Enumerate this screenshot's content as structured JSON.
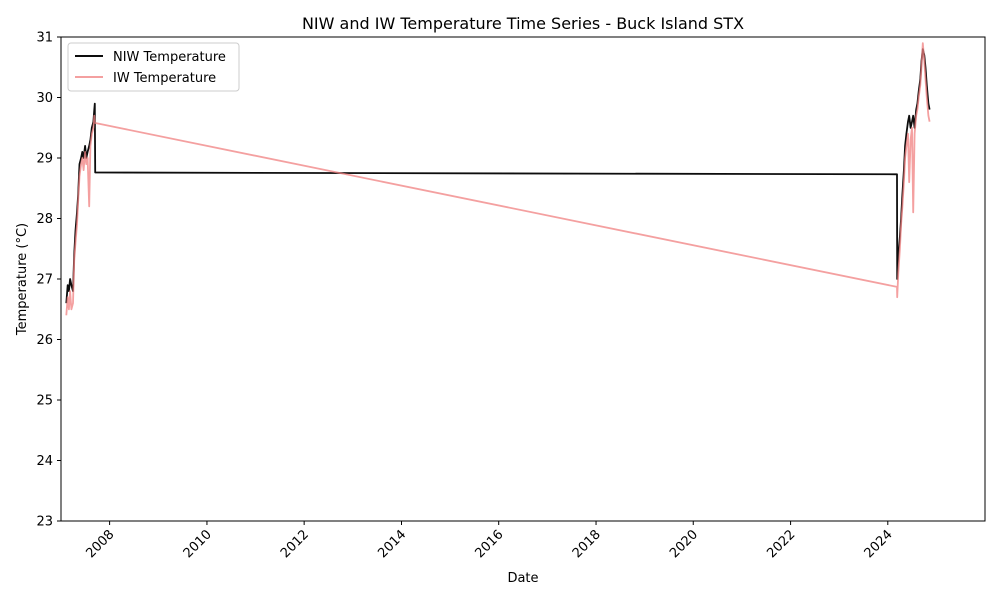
{
  "chart_data": {
    "type": "line",
    "title": "NIW and IW Temperature Time Series - Buck Island STX",
    "xlabel": "Date",
    "ylabel": "Temperature (°C)",
    "x_type": "date",
    "xlim": [
      "2007-01-01",
      "2025-12-31"
    ],
    "ylim": [
      23,
      31
    ],
    "xticks": [
      "2008-01-01",
      "2010-01-01",
      "2012-01-01",
      "2014-01-01",
      "2016-01-01",
      "2018-01-01",
      "2020-01-01",
      "2022-01-01",
      "2024-01-01"
    ],
    "xtick_labels": [
      "2008",
      "2010",
      "2012",
      "2014",
      "2016",
      "2018",
      "2020",
      "2022",
      "2024"
    ],
    "yticks": [
      23,
      24,
      25,
      26,
      27,
      28,
      29,
      30,
      31
    ],
    "ytick_labels": [
      "23",
      "24",
      "25",
      "26",
      "27",
      "28",
      "29",
      "30",
      "31"
    ],
    "grid": false,
    "legend_position": "top-left",
    "series": [
      {
        "name": "NIW Temperature",
        "color": "#000000",
        "opacity": 0.95,
        "x": [
          "2007-02-10",
          "2007-02-20",
          "2007-03-01",
          "2007-03-10",
          "2007-03-20",
          "2007-04-01",
          "2007-04-10",
          "2007-04-20",
          "2007-05-01",
          "2007-05-10",
          "2007-05-20",
          "2007-06-01",
          "2007-06-10",
          "2007-06-20",
          "2007-07-01",
          "2007-07-10",
          "2007-07-20",
          "2007-08-01",
          "2007-08-10",
          "2007-08-20",
          "2007-09-01",
          "2007-09-08",
          "2007-09-12",
          "2007-09-15",
          "2024-03-10",
          "2024-03-12",
          "2024-03-20",
          "2024-04-01",
          "2024-04-10",
          "2024-04-20",
          "2024-05-01",
          "2024-05-10",
          "2024-05-20",
          "2024-06-01",
          "2024-06-10",
          "2024-06-20",
          "2024-07-01",
          "2024-07-10",
          "2024-07-20",
          "2024-08-01",
          "2024-08-10",
          "2024-08-20",
          "2024-09-01",
          "2024-09-10",
          "2024-09-20",
          "2024-10-01",
          "2024-10-10",
          "2024-10-20",
          "2024-11-01",
          "2024-11-10"
        ],
        "y": [
          26.6,
          26.9,
          26.8,
          27.0,
          26.9,
          26.8,
          27.4,
          27.8,
          28.1,
          28.4,
          28.9,
          29.0,
          29.1,
          29.0,
          29.2,
          29.0,
          29.1,
          29.2,
          29.3,
          29.5,
          29.6,
          29.8,
          29.9,
          28.76,
          28.73,
          27.0,
          27.4,
          27.7,
          28.0,
          28.4,
          28.8,
          29.2,
          29.4,
          29.6,
          29.7,
          29.5,
          29.6,
          29.7,
          29.5,
          29.8,
          29.9,
          30.1,
          30.3,
          30.6,
          30.8,
          30.7,
          30.5,
          30.2,
          29.9,
          29.8
        ]
      },
      {
        "name": "IW Temperature",
        "color": "#f08080",
        "opacity": 0.75,
        "x": [
          "2007-02-10",
          "2007-02-20",
          "2007-03-01",
          "2007-03-10",
          "2007-03-20",
          "2007-04-01",
          "2007-04-10",
          "2007-04-20",
          "2007-05-01",
          "2007-05-10",
          "2007-05-20",
          "2007-06-01",
          "2007-06-10",
          "2007-06-20",
          "2007-07-01",
          "2007-07-10",
          "2007-07-20",
          "2007-08-01",
          "2007-08-10",
          "2007-08-20",
          "2007-09-01",
          "2007-09-08",
          "2007-09-12",
          "2024-03-10",
          "2024-03-12",
          "2024-03-20",
          "2024-04-01",
          "2024-04-10",
          "2024-04-20",
          "2024-05-01",
          "2024-05-10",
          "2024-05-20",
          "2024-06-01",
          "2024-06-10",
          "2024-06-20",
          "2024-07-01",
          "2024-07-10",
          "2024-07-20",
          "2024-08-01",
          "2024-08-10",
          "2024-08-20",
          "2024-09-01",
          "2024-09-10",
          "2024-09-20",
          "2024-10-01",
          "2024-10-10",
          "2024-10-20",
          "2024-11-01",
          "2024-11-10"
        ],
        "y": [
          26.4,
          26.7,
          26.5,
          26.8,
          26.5,
          26.6,
          27.3,
          27.6,
          27.9,
          28.3,
          28.7,
          28.9,
          29.0,
          28.8,
          29.1,
          28.9,
          29.0,
          28.2,
          29.2,
          29.4,
          29.5,
          29.7,
          29.58,
          26.87,
          26.7,
          27.1,
          27.5,
          27.9,
          28.2,
          28.6,
          29.0,
          29.2,
          29.4,
          28.6,
          29.3,
          29.5,
          28.1,
          29.4,
          29.7,
          29.8,
          30.0,
          30.2,
          30.5,
          30.9,
          30.6,
          30.3,
          30.0,
          29.7,
          29.6
        ]
      }
    ]
  }
}
